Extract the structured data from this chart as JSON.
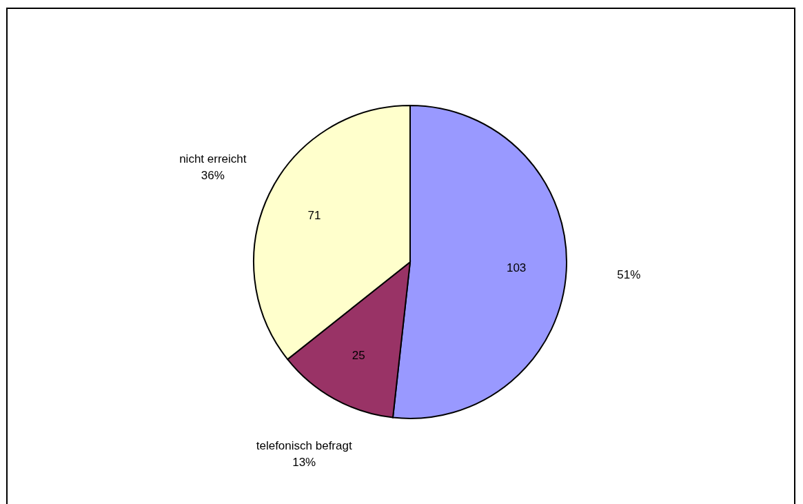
{
  "chart_data": {
    "type": "pie",
    "categories": [
      null,
      "telefonisch befragt",
      "nicht erreicht"
    ],
    "values": [
      103,
      25,
      71
    ],
    "colors": [
      "#9999ff",
      "#993366",
      "#ffffcc"
    ],
    "data_labels": true,
    "annotations": [
      "51%",
      "13%",
      "36%"
    ]
  }
}
